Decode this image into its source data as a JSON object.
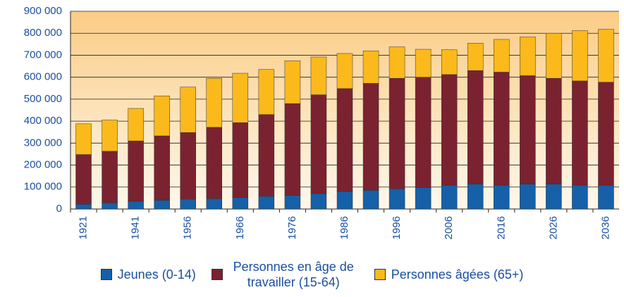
{
  "chart_data": {
    "type": "stacked_bar",
    "categories": [
      "1921",
      null,
      "1941",
      null,
      "1956",
      null,
      "1966",
      null,
      "1976",
      null,
      "1986",
      null,
      "1996",
      null,
      "2006",
      null,
      "2016",
      null,
      "2026",
      null,
      "2036"
    ],
    "series": [
      {
        "name": "Jeunes (0-14)",
        "color": "#1560a8",
        "values": [
          22000,
          28000,
          35000,
          40000,
          45000,
          47000,
          52000,
          58000,
          62000,
          70000,
          80000,
          85000,
          92000,
          97000,
          108000,
          113000,
          108000,
          113000,
          113000,
          108000,
          108000
        ]
      },
      {
        "name": "Personnes en âge de travailler (15-64)",
        "color": "#7b2230",
        "values": [
          226000,
          235000,
          275000,
          293000,
          303000,
          325000,
          341000,
          372000,
          418000,
          450000,
          468000,
          487000,
          503000,
          503000,
          504000,
          517000,
          515000,
          494000,
          482000,
          475000,
          469000
        ]
      },
      {
        "name": "Personnes âgées (65+)",
        "color": "#fbb91c",
        "values": [
          140000,
          142000,
          148000,
          182000,
          207000,
          223000,
          225000,
          205000,
          195000,
          172000,
          160000,
          148000,
          143000,
          127000,
          113000,
          125000,
          149000,
          176000,
          205000,
          229000,
          241000
        ]
      }
    ],
    "ylim": [
      0,
      900000
    ],
    "yticks": [
      0,
      {
        "value": 100000,
        "label": "100 000"
      },
      {
        "value": 200000,
        "label": "200 000"
      },
      {
        "value": 300000,
        "label": "300 000"
      },
      {
        "value": 400000,
        "label": "400 000"
      },
      {
        "value": 500000,
        "label": "500 000"
      },
      {
        "value": 600000,
        "label": "600 000"
      },
      {
        "value": 700000,
        "label": "700 000"
      },
      {
        "value": 800000,
        "label": "800 000"
      },
      {
        "value": 900000,
        "label": "900 000"
      }
    ],
    "grid": true
  }
}
